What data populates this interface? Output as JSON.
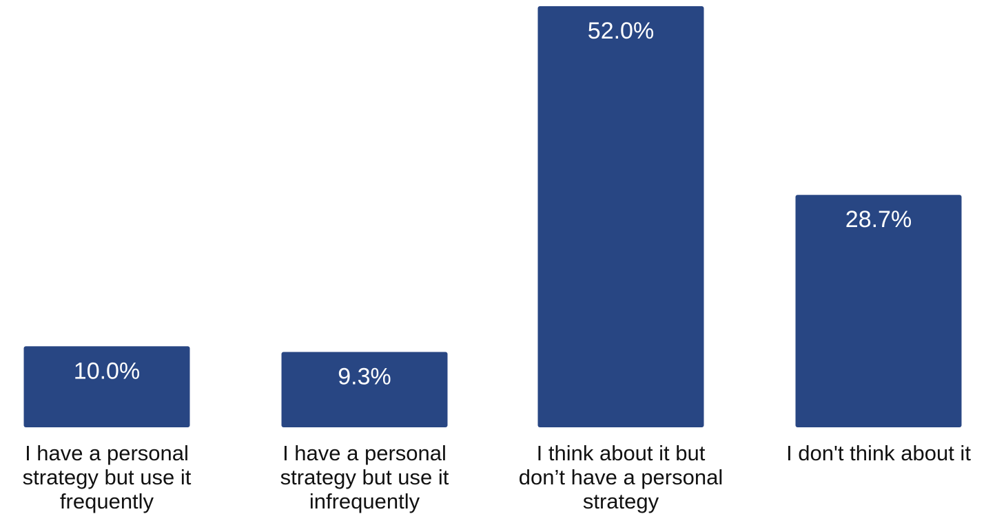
{
  "chart_data": {
    "type": "bar",
    "categories": [
      "I have a personal strategy but use it frequently",
      "I have a personal strategy but use it infrequently",
      "I think about it but don’t have a personal strategy",
      "I don't think about it"
    ],
    "category_lines": [
      [
        "I have a personal",
        "strategy but use it",
        "frequently"
      ],
      [
        "I have a personal",
        "strategy but use it",
        "infrequently"
      ],
      [
        "I think about it but",
        "don’t have a personal",
        "strategy"
      ],
      [
        "I don't think about it"
      ]
    ],
    "values": [
      10.0,
      9.3,
      52.0,
      28.7
    ],
    "data_labels": [
      "10.0%",
      "9.3%",
      "52.0%",
      "28.7%"
    ],
    "bar_color": "#284683",
    "ylim": [
      0,
      52.0
    ],
    "grid": false,
    "legend": "none",
    "title": "",
    "xlabel": "",
    "ylabel": ""
  }
}
